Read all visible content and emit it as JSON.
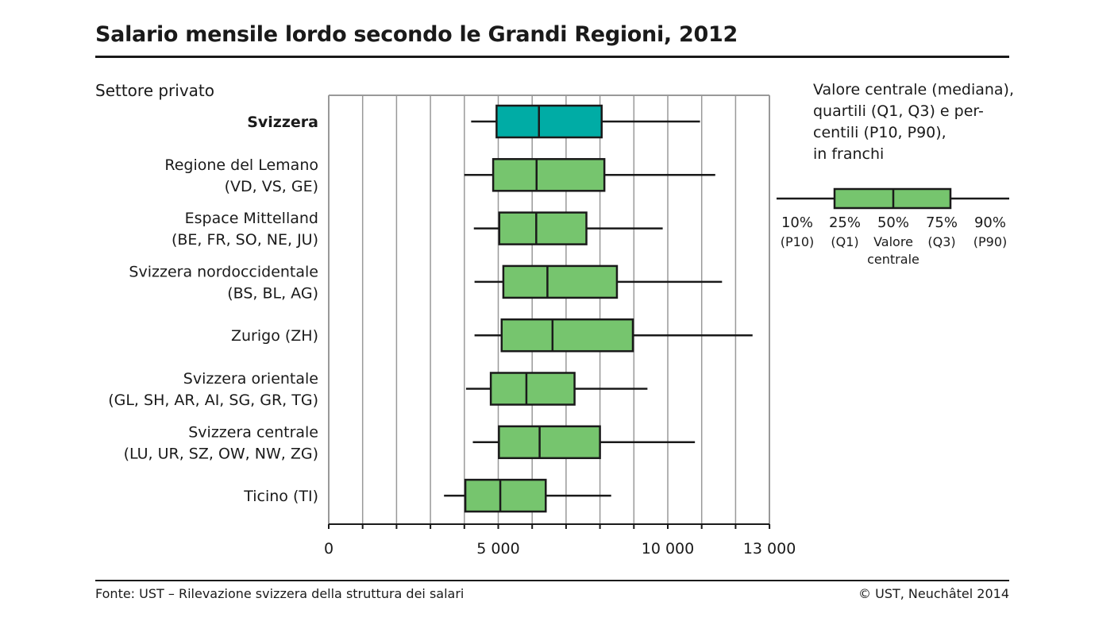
{
  "title": "Salario mensile lordo secondo le Grandi Regioni, 2012",
  "subtitle": "Settore privato",
  "footer": {
    "source": "Fonte: UST – Rilevazione svizzera della struttura dei salari",
    "copyright": "© UST, Neuchâtel 2014"
  },
  "legend": {
    "lines": [
      "Valore centrale (mediana),",
      "quartili (Q1, Q3) e per-",
      "centili (P10, P90),",
      "in franchi"
    ],
    "percent_labels": [
      "10%",
      "25%",
      "50%",
      "75%",
      "90%"
    ],
    "sub_labels": [
      "(P10)",
      "(Q1)",
      "Valore",
      "(Q3)",
      "(P90)"
    ],
    "sub_labels_line2": [
      "",
      "",
      "centrale",
      "",
      ""
    ],
    "box_color": "#76c56e"
  },
  "colors": {
    "highlight": "#00aca5",
    "box": "#76c56e",
    "line": "#1a1a1a",
    "grid": "#999999"
  },
  "chart_data": {
    "type": "boxplot",
    "orientation": "horizontal",
    "title": "Salario mensile lordo secondo le Grandi Regioni, 2012",
    "xlim": [
      0,
      13000
    ],
    "x_ticks": [
      0,
      5000,
      10000,
      13000
    ],
    "x_tick_labels": [
      "0",
      "5 000",
      "10 000",
      "13 000"
    ],
    "grid": true,
    "series": [
      {
        "label": [
          "Svizzera"
        ],
        "bold": true,
        "highlight": true,
        "p10": 4200,
        "q1": 4950,
        "median": 6200,
        "q3": 8050,
        "p90": 10950
      },
      {
        "label": [
          "Regione del Lemano",
          "(VD, VS, GE)"
        ],
        "p10": 4000,
        "q1": 4850,
        "median": 6130,
        "q3": 8130,
        "p90": 11400
      },
      {
        "label": [
          "Espace Mittelland",
          "(BE, FR, SO, NE, JU)"
        ],
        "p10": 4280,
        "q1": 5030,
        "median": 6120,
        "q3": 7600,
        "p90": 9850
      },
      {
        "label": [
          "Svizzera nordoccidentale",
          "(BS, BL, AG)"
        ],
        "p10": 4300,
        "q1": 5150,
        "median": 6450,
        "q3": 8500,
        "p90": 11600
      },
      {
        "label": [
          "Zurigo (ZH)"
        ],
        "p10": 4300,
        "q1": 5100,
        "median": 6600,
        "q3": 8970,
        "p90": 12500
      },
      {
        "label": [
          "Svizzera orientale",
          "(GL, SH, AR, AI, SG, GR, TG)"
        ],
        "p10": 4050,
        "q1": 4780,
        "median": 5830,
        "q3": 7250,
        "p90": 9400
      },
      {
        "label": [
          "Svizzera centrale",
          "(LU, UR, SZ, OW, NW, ZG)"
        ],
        "p10": 4250,
        "q1": 5020,
        "median": 6220,
        "q3": 8000,
        "p90": 10800
      },
      {
        "label": [
          "Ticino (TI)"
        ],
        "p10": 3400,
        "q1": 4030,
        "median": 5060,
        "q3": 6400,
        "p90": 8330
      }
    ]
  }
}
